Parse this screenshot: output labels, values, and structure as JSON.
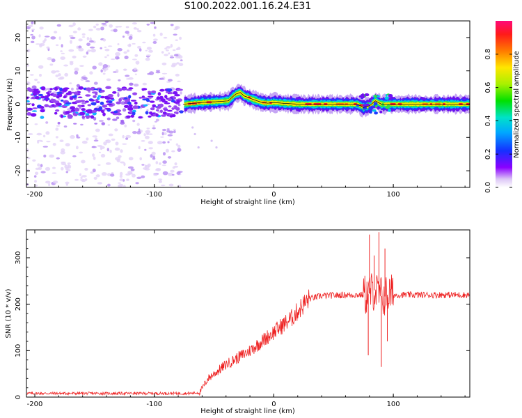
{
  "figure_title": "S100.2022.001.16.24.E31",
  "colors": {
    "snr_line": "#ee2222",
    "trace": "#111111"
  },
  "chart_data": [
    {
      "type": "heatmap",
      "title": "S100.2022.001.16.24.E31",
      "xlabel": "Height of straight line (km)",
      "ylabel": "Frequency (Hz)",
      "xlim": [
        -207,
        164
      ],
      "ylim": [
        -25,
        25
      ],
      "xticks": [
        -200,
        -100,
        0,
        100
      ],
      "yticks": [
        -20,
        -10,
        0,
        10,
        20
      ],
      "x_tick_labels": [
        "-200",
        "-100",
        "0",
        "100"
      ],
      "y_tick_labels": [
        "-20",
        "-10",
        "0",
        "10",
        "20"
      ],
      "colorbar": {
        "label": "Normalized spectral amplitude",
        "range": [
          0,
          1
        ],
        "ticks": [
          0.0,
          0.2,
          0.4,
          0.6,
          0.8
        ],
        "tick_labels": [
          "0.0",
          "0.2",
          "0.4",
          "0.6",
          "0.8"
        ]
      },
      "signal_trace": {
        "description_points_x": [
          -75,
          -60,
          -45,
          -38,
          -32,
          -28,
          -25,
          -18,
          -10,
          -5,
          0,
          10,
          20,
          40,
          60,
          70,
          75,
          80,
          85,
          90,
          95,
          100,
          130,
          164
        ],
        "description_points_y": [
          0,
          0.5,
          0.8,
          1.0,
          3.0,
          3.5,
          2.5,
          1.5,
          0.5,
          0.3,
          0.5,
          0.2,
          0,
          0,
          0,
          0,
          -1,
          -0.5,
          1.0,
          0,
          0,
          0,
          0,
          0
        ]
      },
      "noise_region_x": [
        -207,
        -77
      ],
      "noise_band_y": [
        -4,
        5
      ]
    },
    {
      "type": "line",
      "xlabel": "Height of straight line (km)",
      "ylabel": "SNR (10 * v/v)",
      "xlim": [
        -207,
        164
      ],
      "ylim": [
        0,
        360
      ],
      "xticks": [
        -200,
        -100,
        0,
        100
      ],
      "yticks": [
        0,
        100,
        200,
        300
      ],
      "x_tick_labels": [
        "-200",
        "-100",
        "0",
        "100"
      ],
      "y_tick_labels": [
        "0",
        "100",
        "200",
        "300"
      ],
      "series": [
        {
          "name": "SNR",
          "envelope_x": [
            -207,
            -70,
            -62,
            -55,
            -40,
            -20,
            0,
            15,
            25,
            30,
            40,
            60,
            78,
            84,
            88,
            92,
            96,
            100,
            164
          ],
          "envelope_y": [
            8,
            8,
            10,
            40,
            70,
            100,
            140,
            170,
            200,
            212,
            218,
            220,
            220,
            230,
            220,
            215,
            222,
            220,
            220
          ],
          "spikes": [
            {
              "x": 79,
              "y": 90
            },
            {
              "x": 80,
              "y": 350
            },
            {
              "x": 84,
              "y": 305
            },
            {
              "x": 88,
              "y": 355
            },
            {
              "x": 90,
              "y": 65
            },
            {
              "x": 93,
              "y": 320
            },
            {
              "x": 95,
              "y": 120
            }
          ]
        }
      ]
    }
  ]
}
